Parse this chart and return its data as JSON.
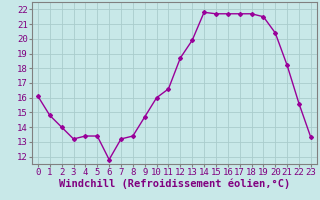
{
  "x": [
    0,
    1,
    2,
    3,
    4,
    5,
    6,
    7,
    8,
    9,
    10,
    11,
    12,
    13,
    14,
    15,
    16,
    17,
    18,
    19,
    20,
    21,
    22,
    23
  ],
  "y": [
    16.1,
    14.8,
    14.0,
    13.2,
    13.4,
    13.4,
    11.8,
    13.2,
    13.4,
    14.7,
    16.0,
    16.6,
    18.7,
    19.9,
    21.8,
    21.7,
    21.7,
    21.7,
    21.7,
    21.5,
    20.4,
    18.2,
    15.6,
    13.3
  ],
  "line_color": "#990099",
  "marker": "D",
  "marker_size": 2,
  "bg_color": "#c8e8e8",
  "grid_color": "#aacccc",
  "text_color": "#800080",
  "xlabel": "Windchill (Refroidissement éolien,°C)",
  "ylabel_ticks": [
    12,
    13,
    14,
    15,
    16,
    17,
    18,
    19,
    20,
    21,
    22
  ],
  "ylim": [
    11.5,
    22.5
  ],
  "xlim": [
    -0.5,
    23.5
  ],
  "xticks": [
    0,
    1,
    2,
    3,
    4,
    5,
    6,
    7,
    8,
    9,
    10,
    11,
    12,
    13,
    14,
    15,
    16,
    17,
    18,
    19,
    20,
    21,
    22,
    23
  ],
  "tick_fontsize": 6.5,
  "xlabel_fontsize": 7.5,
  "spine_color": "#808080",
  "linewidth": 1.0
}
